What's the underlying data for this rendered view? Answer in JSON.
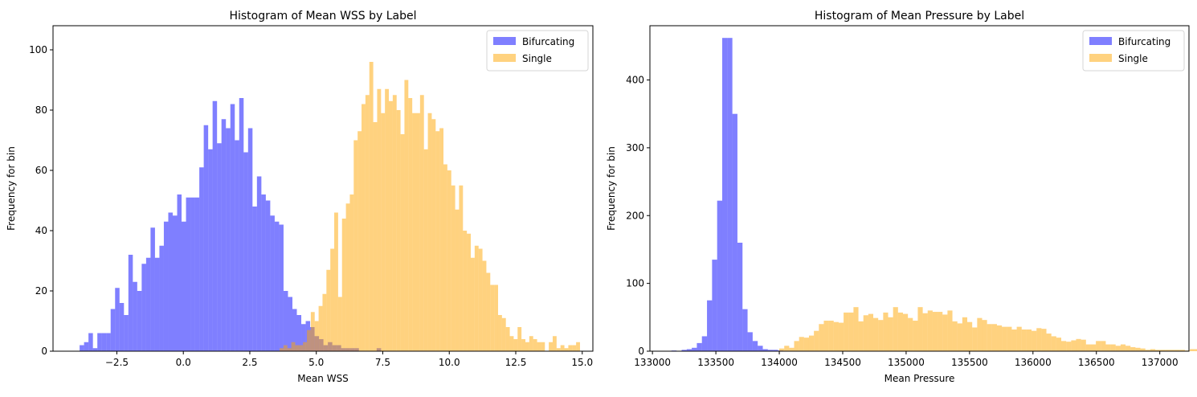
{
  "chart_data": [
    {
      "type": "bar",
      "title": "Histogram of Mean WSS by Label",
      "xlabel": "Mean WSS",
      "ylabel": "Frequency for bin",
      "xlim": [
        -4.9,
        15.4
      ],
      "ylim": [
        0,
        108
      ],
      "xticks": [
        -2.5,
        0.0,
        2.5,
        5.0,
        7.5,
        10.0,
        12.5,
        15.0
      ],
      "xtick_labels": [
        "−2.5",
        "0.0",
        "2.5",
        "5.0",
        "7.5",
        "10.0",
        "12.5",
        "15.0"
      ],
      "yticks": [
        0,
        20,
        40,
        60,
        80,
        100
      ],
      "ytick_labels": [
        "0",
        "20",
        "40",
        "60",
        "80",
        "100"
      ],
      "legend": "top-right",
      "series": [
        {
          "name": "Bifurcating",
          "color": "#0000ff",
          "alpha": 0.5,
          "bin_start": -3.9,
          "bin_width": 0.1667,
          "values": [
            2,
            3,
            6,
            1,
            6,
            6,
            6,
            14,
            21,
            16,
            12,
            32,
            23,
            20,
            29,
            31,
            41,
            31,
            35,
            43,
            46,
            45,
            52,
            43,
            51,
            51,
            51,
            61,
            75,
            67,
            83,
            69,
            77,
            74,
            82,
            70,
            84,
            66,
            74,
            48,
            58,
            52,
            50,
            45,
            43,
            42,
            20,
            18,
            14,
            12,
            9,
            10,
            8,
            5,
            4,
            2,
            3,
            2,
            2,
            1,
            1,
            1,
            1,
            0,
            0,
            0,
            0,
            1
          ]
        },
        {
          "name": "Single",
          "color": "#ffa500",
          "alpha": 0.5,
          "bin_start": 3.62,
          "bin_width": 0.1467,
          "values": [
            1,
            2,
            1,
            3,
            2,
            2,
            3,
            7,
            13,
            10,
            15,
            19,
            27,
            34,
            46,
            18,
            44,
            49,
            52,
            70,
            73,
            82,
            85,
            96,
            76,
            87,
            79,
            87,
            83,
            85,
            80,
            72,
            90,
            84,
            79,
            79,
            85,
            67,
            79,
            77,
            73,
            74,
            62,
            60,
            55,
            47,
            55,
            40,
            39,
            31,
            35,
            34,
            30,
            26,
            22,
            22,
            12,
            11,
            8,
            5,
            4,
            8,
            4,
            3,
            5,
            4,
            3,
            3,
            0,
            3,
            5,
            1,
            2,
            1,
            2,
            2,
            3
          ]
        }
      ],
      "overlap_highlight": {
        "bin_start": 4.8,
        "bin_width": 0.1467,
        "values": [
          19,
          11,
          18,
          12,
          8,
          10,
          12,
          8,
          4,
          4,
          4,
          2,
          2,
          2,
          1,
          1,
          1,
          1,
          0,
          0
        ]
      }
    },
    {
      "type": "bar",
      "title": "Histogram of Mean Pressure by Label",
      "xlabel": "Mean Pressure",
      "ylabel": "Frequency for bin",
      "xlim": [
        132980,
        137230
      ],
      "ylim": [
        0,
        480
      ],
      "xticks": [
        133000,
        133500,
        134000,
        134500,
        135000,
        135500,
        136000,
        136500,
        137000
      ],
      "xtick_labels": [
        "133000",
        "133500",
        "134000",
        "134500",
        "135000",
        "135500",
        "136000",
        "136500",
        "137000"
      ],
      "yticks": [
        0,
        100,
        200,
        300,
        400
      ],
      "ytick_labels": [
        "0",
        "100",
        "200",
        "300",
        "400"
      ],
      "legend": "top-right",
      "series": [
        {
          "name": "Bifurcating",
          "color": "#0000ff",
          "alpha": 0.5,
          "bin_start": 133150,
          "bin_width": 40,
          "values": [
            1,
            0,
            2,
            3,
            5,
            12,
            22,
            75,
            135,
            222,
            462,
            462,
            350,
            160,
            62,
            28,
            15,
            8,
            3,
            2,
            2,
            1
          ]
        },
        {
          "name": "Single",
          "color": "#ffa500",
          "alpha": 0.5,
          "bin_start": 134000,
          "bin_width": 39,
          "values": [
            4,
            8,
            5,
            15,
            21,
            20,
            23,
            30,
            40,
            45,
            45,
            43,
            42,
            57,
            57,
            65,
            44,
            53,
            55,
            49,
            46,
            57,
            50,
            65,
            57,
            55,
            49,
            45,
            65,
            56,
            60,
            58,
            58,
            54,
            60,
            44,
            41,
            50,
            43,
            35,
            49,
            46,
            40,
            40,
            38,
            36,
            36,
            32,
            36,
            32,
            32,
            30,
            34,
            33,
            26,
            22,
            20,
            15,
            14,
            16,
            18,
            17,
            10,
            10,
            15,
            15,
            10,
            10,
            8,
            10,
            8,
            6,
            5,
            4,
            2,
            3,
            2,
            2,
            2,
            2,
            2,
            2,
            1,
            3,
            3,
            1,
            1,
            1,
            1,
            3
          ]
        }
      ]
    }
  ]
}
